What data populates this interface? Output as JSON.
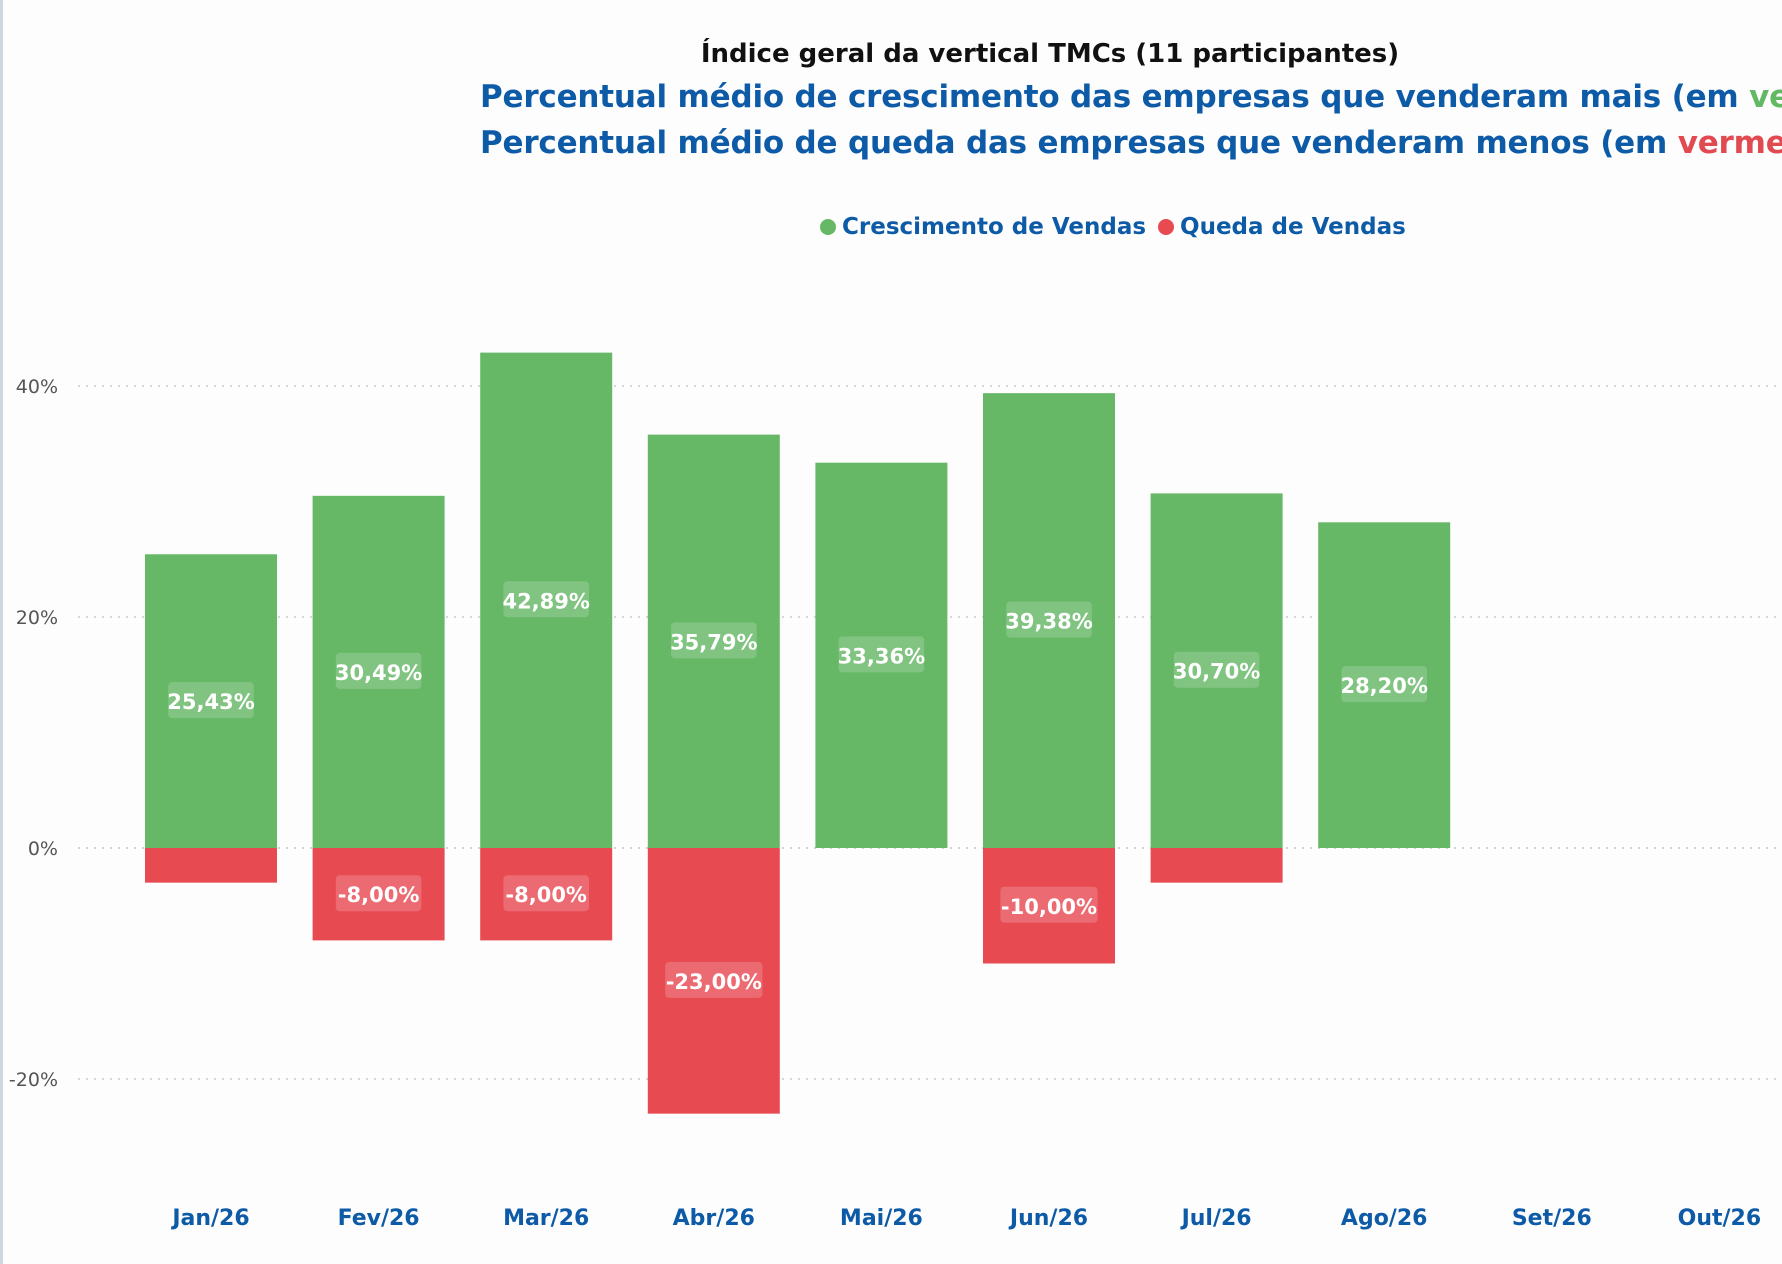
{
  "colors": {
    "growth": "#66b866",
    "decline": "#e84a52",
    "title_blue": "#0d5aa7",
    "grid": "#c8c8c8"
  },
  "chart_data": {
    "type": "bar",
    "title": "Índice geral da vertical TMCs  (11 participantes)",
    "subtitle_1": {
      "pre": "Percentual médio de crescimento das empresas que venderam mais (em ",
      "highlight": "verde",
      "post": ")"
    },
    "subtitle_2": {
      "pre": "Percentual médio de queda das empresas que venderam menos (em ",
      "highlight": "vermelho",
      "post": ")"
    },
    "categories": [
      "Jan/26",
      "Fev/26",
      "Mar/26",
      "Abr/26",
      "Mai/26",
      "Jun/26",
      "Jul/26",
      "Ago/26",
      "Set/26",
      "Out/26"
    ],
    "series": [
      {
        "name": "Crescimento de Vendas",
        "values": [
          25.43,
          30.49,
          42.89,
          35.79,
          33.36,
          39.38,
          30.7,
          28.2,
          null,
          null
        ],
        "labels": [
          "25,43%",
          "30,49%",
          "42,89%",
          "35,79%",
          "33,36%",
          "39,38%",
          "30,70%",
          "28,20%",
          null,
          null
        ]
      },
      {
        "name": "Queda de Vendas",
        "values": [
          -3.0,
          -8.0,
          -8.0,
          -23.0,
          null,
          -10.0,
          -3.0,
          null,
          null,
          null
        ],
        "labels": [
          null,
          "-8,00%",
          "-8,00%",
          "-23,00%",
          null,
          "-10,00%",
          null,
          null,
          null,
          null
        ]
      }
    ],
    "y_ticks": [
      {
        "value": 40,
        "label": "40%"
      },
      {
        "value": 20,
        "label": "20%"
      },
      {
        "value": 0,
        "label": "0%"
      },
      {
        "value": -20,
        "label": "-20%"
      }
    ],
    "ylim": [
      -28,
      47
    ],
    "stacked": true,
    "grid": true,
    "legend": "top-center"
  }
}
